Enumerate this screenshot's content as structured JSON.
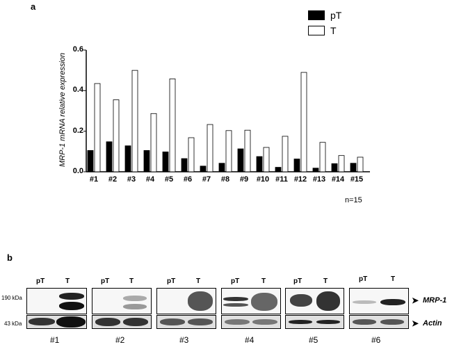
{
  "panel_a": {
    "letter": "a",
    "note": "n=15",
    "chart_data": {
      "type": "bar",
      "ylabel": "MRP-1 mRNA relative expression",
      "xlabel": "",
      "ylim": [
        0,
        0.6
      ],
      "yticks": [
        "0.0",
        "0.2",
        "0.4",
        "0.6"
      ],
      "categories": [
        "#1",
        "#2",
        "#3",
        "#4",
        "#5",
        "#6",
        "#7",
        "#8",
        "#9",
        "#10",
        "#11",
        "#12",
        "#13",
        "#14",
        "#15"
      ],
      "legend_position": "top-right",
      "series": [
        {
          "name": "pT",
          "color": "#000000",
          "values": [
            0.105,
            0.148,
            0.128,
            0.105,
            0.098,
            0.065,
            0.028,
            0.042,
            0.113,
            0.075,
            0.022,
            0.063,
            0.018,
            0.04,
            0.042
          ]
        },
        {
          "name": "T",
          "color": "#ffffff",
          "values": [
            0.435,
            0.355,
            0.5,
            0.287,
            0.458,
            0.168,
            0.233,
            0.203,
            0.205,
            0.12,
            0.175,
            0.49,
            0.145,
            0.08,
            0.072
          ]
        }
      ]
    }
  },
  "panel_b": {
    "letter": "b",
    "size_markers": [
      "190 kDa",
      "43 kDa"
    ],
    "protein_labels": [
      "MRP-1",
      "Actin"
    ],
    "blots": [
      {
        "sample": "#1",
        "lane_labels": [
          "pT",
          "T"
        ]
      },
      {
        "sample": "#2",
        "lane_labels": [
          "pT",
          "T"
        ]
      },
      {
        "sample": "#3",
        "lane_labels": [
          "pT",
          "T"
        ]
      },
      {
        "sample": "#4",
        "lane_labels": [
          "pT",
          "T"
        ]
      },
      {
        "sample": "#5",
        "lane_labels": [
          "pT",
          "T"
        ]
      },
      {
        "sample": "#6",
        "lane_labels": [
          "pT",
          "T"
        ]
      }
    ]
  }
}
